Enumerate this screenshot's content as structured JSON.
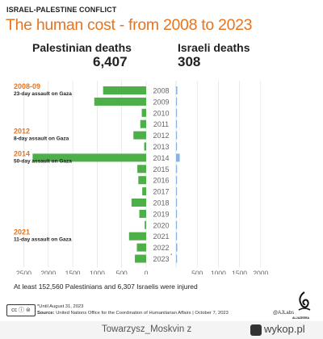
{
  "header": {
    "kicker": "ISRAEL-PALESTINE CONFLICT",
    "title": "The human cost - from 2008 to 2023",
    "palestinian_label": "Palestinian deaths",
    "palestinian_total": "6,407",
    "israeli_label": "Israeli deaths",
    "israeli_total": "308"
  },
  "chart_data": {
    "type": "bar",
    "orientation": "horizontal",
    "layout": "back-to-back",
    "categories": [
      "2008",
      "2009",
      "2010",
      "2011",
      "2012",
      "2013",
      "2014",
      "2015",
      "2016",
      "2017",
      "2018",
      "2019",
      "2020",
      "2021",
      "2022",
      "2023"
    ],
    "category_suffix": {
      "2023": "*"
    },
    "series": [
      {
        "name": "Palestinian deaths",
        "side": "left",
        "color": "#4caf48",
        "values": [
          880,
          1060,
          90,
          120,
          260,
          40,
          2320,
          180,
          160,
          80,
          300,
          140,
          30,
          350,
          190,
          230
        ]
      },
      {
        "name": "Israeli deaths",
        "side": "right",
        "color": "#8ab4e0",
        "values": [
          30,
          9,
          10,
          11,
          8,
          6,
          88,
          24,
          14,
          17,
          13,
          11,
          3,
          17,
          30,
          24
        ]
      }
    ],
    "left_axis": {
      "ticks": [
        2500,
        2000,
        1500,
        1000,
        500,
        0
      ],
      "range": [
        0,
        2500
      ]
    },
    "right_axis": {
      "ticks": [
        500,
        1000,
        1500,
        2000
      ],
      "range": [
        0,
        2500
      ]
    },
    "grid": true,
    "annotations": [
      {
        "category": "2008",
        "year": "2008-09",
        "text": "23-day assault on Gaza"
      },
      {
        "category": "2012",
        "year": "2012",
        "text": "8-day assault on Gaza"
      },
      {
        "category": "2014",
        "year": "2014",
        "text": "50-day assault on Gaza"
      },
      {
        "category": "2021",
        "year": "2021",
        "text": "11-day assault on Gaza"
      }
    ]
  },
  "injured_note": "At least 152,560 Palestinians and 6,307 Israelis were injured",
  "footer": {
    "license": "cc ⓘ ⊜",
    "until_note": "*Until August 31, 2023",
    "source_label": "Source:",
    "source_text": "United Nations Office for the Coordination of Humanitarian Affairs",
    "date": "October 7, 2023",
    "credit": "@AJLabs",
    "logo_text": "ALJAZEERA"
  },
  "watermark": {
    "user": "Towarzysz_Moskvin",
    "brand_prefix": "z",
    "brand": "wykop.pl"
  }
}
